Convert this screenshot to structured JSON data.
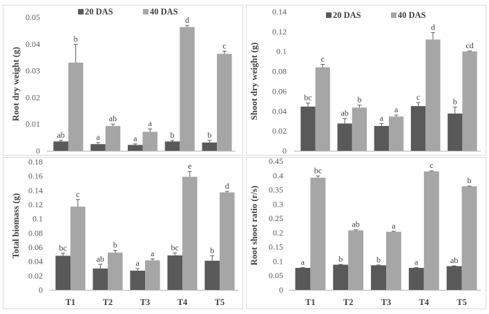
{
  "figure": {
    "colors": {
      "series_20": "#595959",
      "series_40": "#a6a6a6",
      "errorbar": "#595959",
      "axis": "#bfbfbf",
      "border": "#d9d9d9"
    }
  },
  "chart_data": [
    {
      "type": "bar",
      "title": "",
      "ylabel": "Root dry weight (g)",
      "xlabel": "",
      "categories": [
        "T1",
        "T2",
        "T3",
        "T4",
        "T5"
      ],
      "show_category_labels": false,
      "ylim": [
        0,
        0.05
      ],
      "yticks": [
        "0",
        "0.01",
        "0.02",
        "0.03",
        "0.04",
        "0.05"
      ],
      "ytick_values": [
        0,
        0.01,
        0.02,
        0.03,
        0.04,
        0.05
      ],
      "legend": {
        "placement": "top",
        "entries": [
          "20 DAS",
          "40 DAS"
        ]
      },
      "series": [
        {
          "name": "20 DAS",
          "values": [
            0.0035,
            0.0025,
            0.0022,
            0.0035,
            0.0031
          ],
          "errors": [
            0.0004,
            0.0006,
            0.0004,
            0.0004,
            0.0008
          ],
          "letters": [
            "ab",
            "a",
            "a",
            "b",
            "b"
          ]
        },
        {
          "name": "40 DAS",
          "values": [
            0.033,
            0.0093,
            0.0071,
            0.0463,
            0.0363
          ],
          "errors": [
            0.0068,
            0.0007,
            0.0011,
            0.0006,
            0.001
          ],
          "letters": [
            "b",
            "ab",
            "a",
            "d",
            "c"
          ]
        }
      ]
    },
    {
      "type": "bar",
      "title": "",
      "ylabel": "Shoot dry weight (g)",
      "xlabel": "",
      "categories": [
        "T1",
        "T2",
        "T3",
        "T4",
        "T5"
      ],
      "show_category_labels": false,
      "ylim": [
        0,
        0.14
      ],
      "yticks": [
        "0",
        "0.02",
        "0.04",
        "0.06",
        "0.08",
        "0.1",
        "0.12",
        "0.14"
      ],
      "ytick_values": [
        0,
        0.02,
        0.04,
        0.06,
        0.08,
        0.1,
        0.12,
        0.14
      ],
      "legend": {
        "placement": "top",
        "entries": [
          "20 DAS",
          "40 DAS"
        ]
      },
      "series": [
        {
          "name": "20 DAS",
          "values": [
            0.0445,
            0.0275,
            0.025,
            0.045,
            0.0375
          ],
          "errors": [
            0.0035,
            0.005,
            0.0025,
            0.0035,
            0.0065
          ],
          "letters": [
            "bc",
            "ab",
            "a",
            "c",
            "b"
          ]
        },
        {
          "name": "40 DAS",
          "values": [
            0.084,
            0.0435,
            0.0345,
            0.112,
            0.1
          ],
          "errors": [
            0.003,
            0.0025,
            0.0015,
            0.007,
            0.0005
          ],
          "letters": [
            "c",
            "b",
            "a",
            "d",
            "cd"
          ]
        }
      ]
    },
    {
      "type": "bar",
      "title": "",
      "ylabel": "Total biomass (g)",
      "xlabel": "",
      "categories": [
        "T1",
        "T2",
        "T3",
        "T4",
        "T5"
      ],
      "show_category_labels": true,
      "ylim": [
        0,
        0.18
      ],
      "yticks": [
        "0",
        "0.02",
        "0.04",
        "0.06",
        "0.08",
        "0.1",
        "0.12",
        "0.14",
        "0.16",
        "0.18"
      ],
      "ytick_values": [
        0,
        0.02,
        0.04,
        0.06,
        0.08,
        0.1,
        0.12,
        0.14,
        0.16,
        0.18
      ],
      "legend": null,
      "series": [
        {
          "name": "20 DAS",
          "values": [
            0.048,
            0.03,
            0.027,
            0.0485,
            0.041
          ],
          "errors": [
            0.0035,
            0.006,
            0.003,
            0.0035,
            0.007
          ],
          "letters": [
            "bc",
            "ab",
            "a",
            "bc",
            "b"
          ]
        },
        {
          "name": "40 DAS",
          "values": [
            0.117,
            0.0525,
            0.0415,
            0.159,
            0.137
          ],
          "errors": [
            0.01,
            0.003,
            0.002,
            0.0075,
            0.0015
          ],
          "letters": [
            "c",
            "b",
            "a",
            "e",
            "d"
          ]
        }
      ]
    },
    {
      "type": "bar",
      "title": "",
      "ylabel": "Root shoot ratio (r/s)",
      "xlabel": "",
      "categories": [
        "T1",
        "T2",
        "T3",
        "T4",
        "T5"
      ],
      "show_category_labels": true,
      "ylim": [
        0,
        0.45
      ],
      "yticks": [
        "0",
        "0.05",
        "0.1",
        "0.15",
        "0.2",
        "0.25",
        "0.3",
        "0.35",
        "0.4",
        "0.45"
      ],
      "ytick_values": [
        0,
        0.05,
        0.1,
        0.15,
        0.2,
        0.25,
        0.3,
        0.35,
        0.4,
        0.45
      ],
      "legend": null,
      "series": [
        {
          "name": "20 DAS",
          "values": [
            0.077,
            0.088,
            0.086,
            0.077,
            0.083
          ],
          "errors": [
            0.001,
            0.001,
            0.001,
            0.001,
            0.001
          ],
          "letters": [
            "a",
            "b",
            "b",
            "a",
            "ab"
          ]
        },
        {
          "name": "40 DAS",
          "values": [
            0.392,
            0.208,
            0.203,
            0.414,
            0.362
          ],
          "errors": [
            0.006,
            0.002,
            0.002,
            0.002,
            0.001
          ],
          "letters": [
            "bc",
            "ab",
            "a",
            "c",
            "b"
          ]
        }
      ]
    }
  ]
}
